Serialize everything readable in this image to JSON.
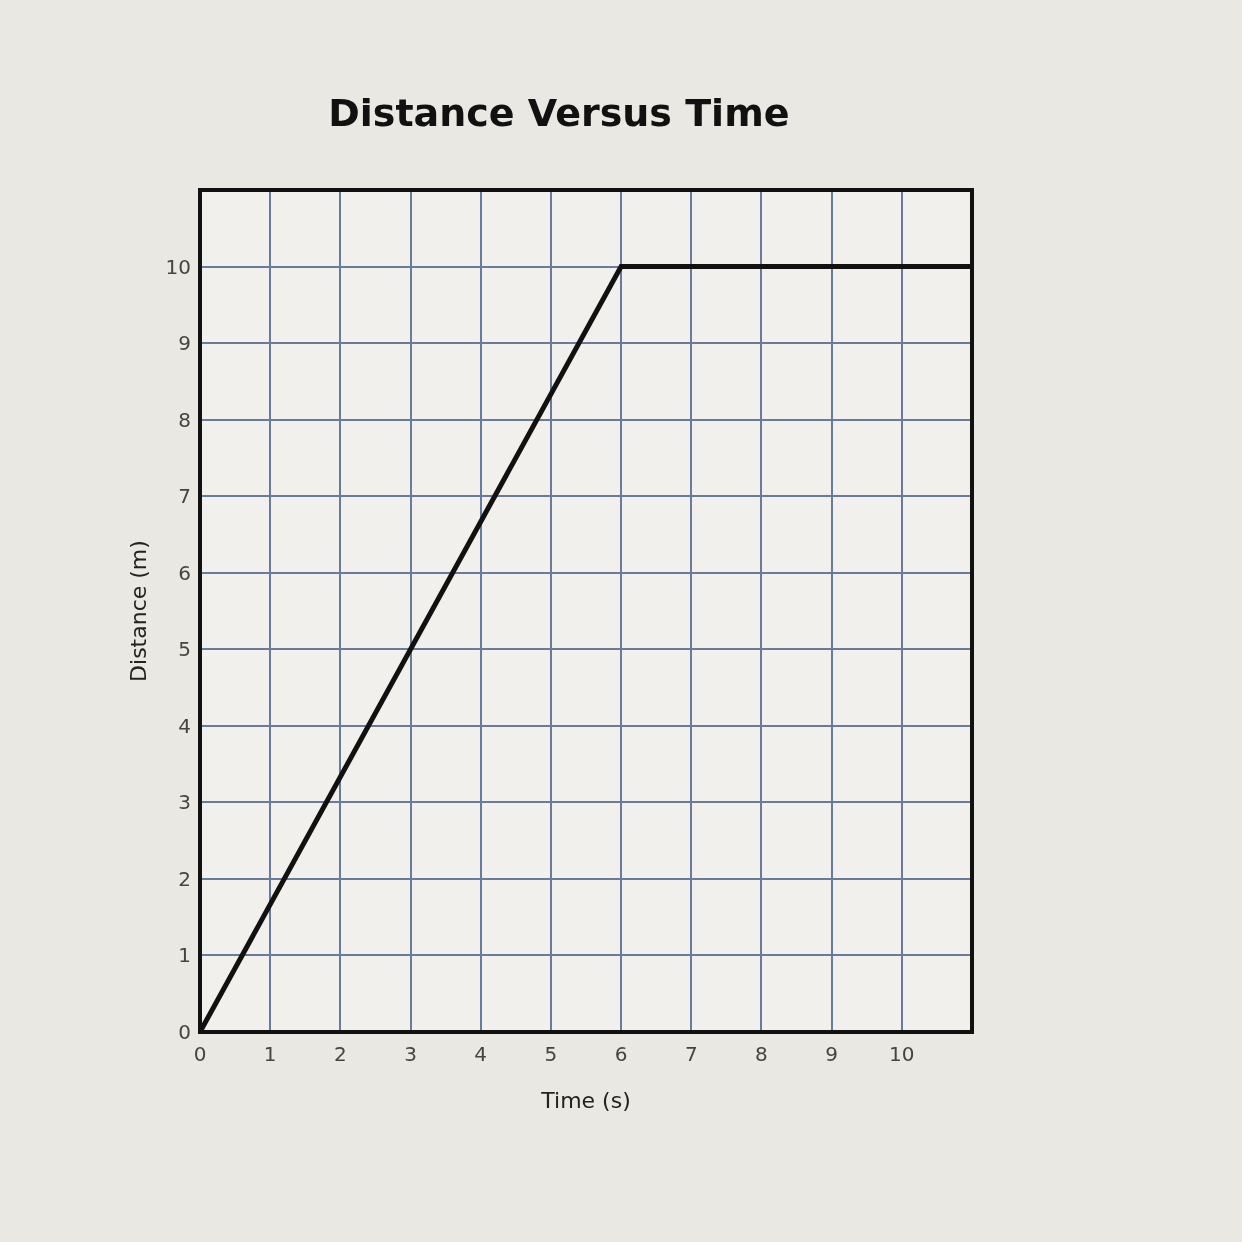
{
  "chart_data": {
    "type": "line",
    "title": "Distance Versus Time",
    "xlabel": "Time (s)",
    "ylabel": "Distance (m)",
    "x": [
      0,
      6,
      11
    ],
    "series": [
      {
        "color": "#111111",
        "values": [
          0,
          10,
          10
        ]
      }
    ],
    "xlim": [
      0,
      11
    ],
    "ylim": [
      0,
      11
    ],
    "xticks": [
      0,
      1,
      2,
      3,
      4,
      5,
      6,
      7,
      8,
      9,
      10
    ],
    "yticks": [
      0,
      1,
      2,
      3,
      4,
      5,
      6,
      7,
      8,
      9,
      10
    ],
    "grid": true,
    "marker": "none",
    "line_style": "solid"
  }
}
